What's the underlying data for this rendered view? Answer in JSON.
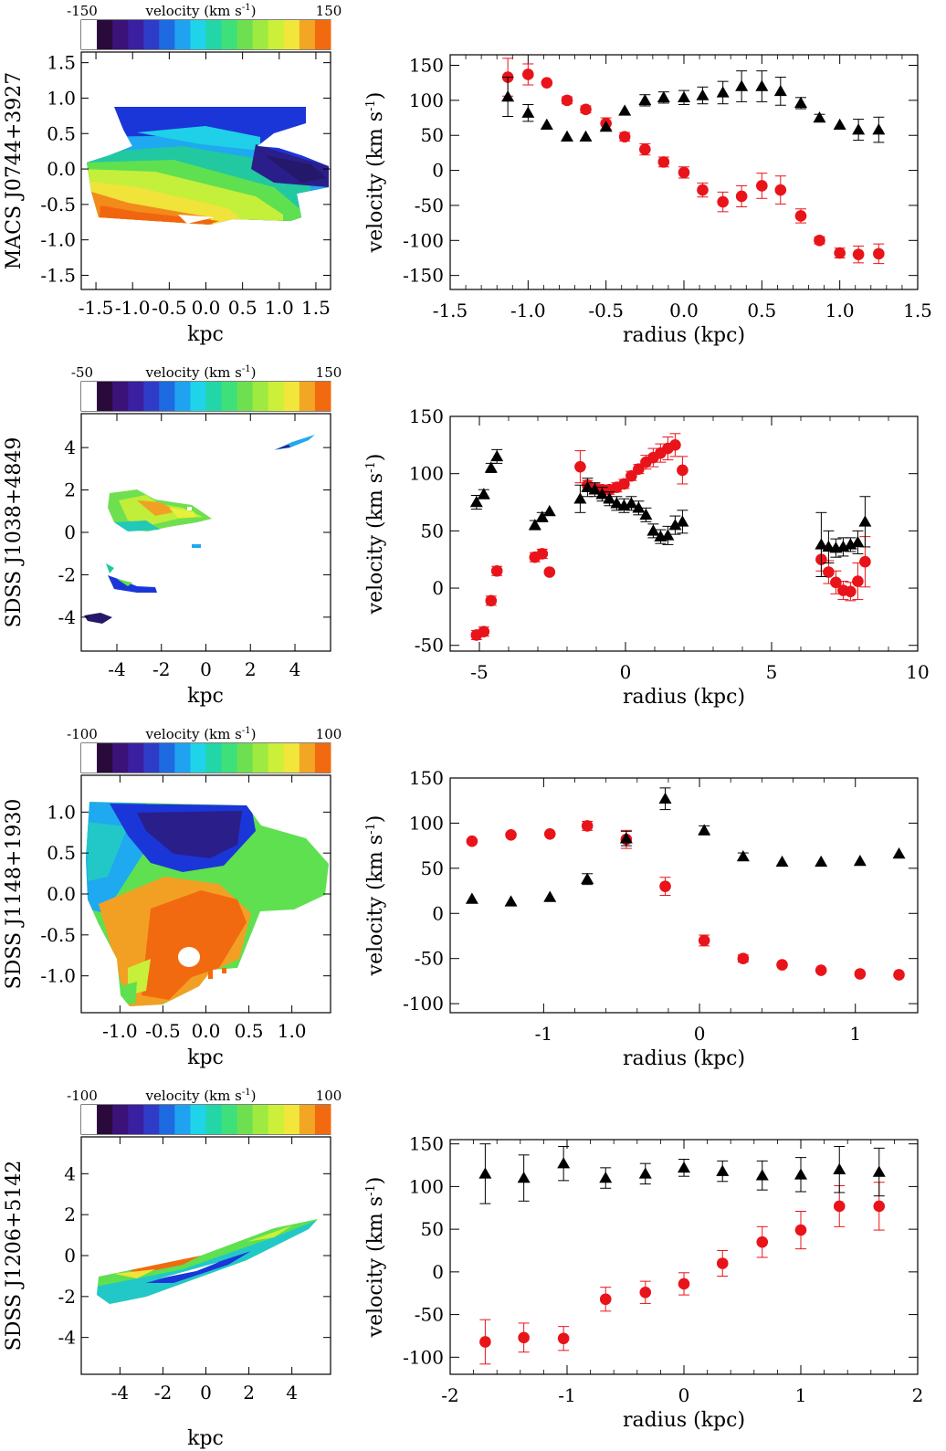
{
  "chart_data": [
    {
      "type": "scatter",
      "object": "MACS J0744+3927",
      "map": {
        "colorbar": {
          "min_label": "-150",
          "max_label": "150",
          "label": "velocity (km s",
          "sup": "-1",
          "close": ")"
        },
        "ylabel": "MACS J0744+3927",
        "xlabel": "kpc",
        "xlim": [
          -1.7,
          1.7
        ],
        "ylim": [
          -1.7,
          1.65
        ],
        "xticks": [
          -1.5,
          -1.0,
          -0.5,
          0.0,
          0.5,
          1.0,
          1.5
        ],
        "xtick_labels": [
          "-1.5",
          "-1.0",
          "-0.5",
          "0.0",
          "0.5",
          "1.0",
          "1.5"
        ],
        "yticks": [
          -1.5,
          -1.0,
          -0.5,
          0.0,
          0.5,
          1.0,
          1.5
        ],
        "ytick_labels": [
          "-1.5",
          "-1.0",
          "-0.5",
          "0.0",
          "0.5",
          "1.0",
          "1.5"
        ]
      },
      "plot": {
        "xlabel": "radius (kpc)",
        "ylabel": "velocity (km s",
        "ylabel_sup": "-1",
        "ylabel_close": ")",
        "xlim": [
          -1.5,
          1.5
        ],
        "ylim": [
          -170,
          165
        ],
        "xticks": [
          -1.5,
          -1.0,
          -0.5,
          0.0,
          0.5,
          1.0,
          1.5
        ],
        "xtick_labels": [
          "-1.5",
          "-1.0",
          "-0.5",
          "0.0",
          "0.5",
          "1.0",
          "1.5"
        ],
        "yticks": [
          -150,
          -100,
          -50,
          0,
          50,
          100,
          150
        ],
        "ytick_labels": [
          "-150",
          "-100",
          "-50",
          "0",
          "50",
          "100",
          "150"
        ],
        "series": [
          {
            "name": "red circles",
            "marker": "circle",
            "color": "#e8141a",
            "x": [
              -1.13,
              -1.0,
              -0.88,
              -0.75,
              -0.63,
              -0.5,
              -0.38,
              -0.25,
              -0.13,
              0.0,
              0.12,
              0.25,
              0.37,
              0.5,
              0.62,
              0.75,
              0.87,
              1.0,
              1.12,
              1.25
            ],
            "y": [
              133,
              137,
              125,
              100,
              87,
              67,
              48,
              30,
              12,
              -3,
              -28,
              -45,
              -37,
              -22,
              -28,
              -65,
              -100,
              -118,
              -120,
              -119
            ],
            "err": [
              27,
              15,
              0,
              5,
              5,
              8,
              6,
              8,
              7,
              8,
              10,
              14,
              15,
              18,
              20,
              10,
              5,
              7,
              12,
              14
            ]
          },
          {
            "name": "black triangles",
            "marker": "triangle",
            "color": "#000000",
            "x": [
              -1.13,
              -1.0,
              -0.88,
              -0.75,
              -0.63,
              -0.5,
              -0.38,
              -0.25,
              -0.13,
              0.0,
              0.12,
              0.25,
              0.37,
              0.5,
              0.62,
              0.75,
              0.87,
              1.0,
              1.12,
              1.25
            ],
            "y": [
              105,
              82,
              65,
              48,
              48,
              62,
              85,
              100,
              104,
              104,
              107,
              111,
              120,
              120,
              113,
              96,
              75,
              65,
              58,
              58
            ],
            "err": [
              28,
              12,
              0,
              0,
              0,
              0,
              0,
              8,
              8,
              10,
              12,
              16,
              22,
              22,
              20,
              8,
              5,
              0,
              15,
              18
            ]
          }
        ]
      }
    },
    {
      "type": "scatter",
      "object": "SDSS J1038+4849",
      "map": {
        "colorbar": {
          "min_label": "-50",
          "max_label": "150",
          "label": "velocity (km s",
          "sup": "-1",
          "close": ")"
        },
        "ylabel": "SDSS J1038+4849",
        "xlabel": "kpc",
        "xlim": [
          -5.6,
          5.6
        ],
        "ylim": [
          -5.6,
          5.6
        ],
        "xticks": [
          -4,
          -2,
          0,
          2,
          4
        ],
        "xtick_labels": [
          "-4",
          "-2",
          "0",
          "2",
          "4"
        ],
        "yticks": [
          -4,
          -2,
          0,
          2,
          4
        ],
        "ytick_labels": [
          "-4",
          "-2",
          "0",
          "2",
          "4"
        ]
      },
      "plot": {
        "xlabel": "radius (kpc)",
        "ylabel": "velocity (km s",
        "ylabel_sup": "-1",
        "ylabel_close": ")",
        "xlim": [
          -6,
          10
        ],
        "ylim": [
          -55,
          150
        ],
        "xticks": [
          -5,
          0,
          5,
          10
        ],
        "xtick_labels": [
          "-5",
          "0",
          "5",
          "10"
        ],
        "yticks": [
          -50,
          0,
          50,
          100,
          150
        ],
        "ytick_labels": [
          "-50",
          "0",
          "50",
          "100",
          "150"
        ],
        "series": [
          {
            "name": "red circles",
            "marker": "circle",
            "color": "#e8141a",
            "x": [
              -5.1,
              -4.85,
              -4.6,
              -4.4,
              -3.1,
              -2.85,
              -2.6,
              -1.55,
              -1.3,
              -1.05,
              -0.8,
              -0.55,
              -0.3,
              -0.05,
              0.2,
              0.45,
              0.7,
              0.95,
              1.2,
              1.45,
              1.7,
              1.95,
              6.7,
              6.95,
              7.2,
              7.45,
              7.7,
              7.95,
              8.2
            ],
            "y": [
              -41,
              -38,
              -11,
              15,
              27,
              30,
              14,
              106,
              90,
              87,
              86,
              86,
              88,
              91,
              98,
              104,
              110,
              114,
              118,
              122,
              125,
              103,
              25,
              14,
              5,
              -2,
              -3,
              6,
              23
            ],
            "err": [
              4,
              4,
              4,
              4,
              4,
              4,
              0,
              14,
              4,
              4,
              4,
              4,
              4,
              4,
              4,
              4,
              6,
              8,
              8,
              10,
              10,
              12,
              10,
              10,
              10,
              8,
              8,
              16,
              22
            ]
          },
          {
            "name": "black triangles",
            "marker": "triangle",
            "color": "#000000",
            "x": [
              -5.1,
              -4.85,
              -4.6,
              -4.4,
              -3.1,
              -2.85,
              -2.6,
              -1.55,
              -1.3,
              -1.05,
              -0.8,
              -0.55,
              -0.3,
              -0.05,
              0.2,
              0.45,
              0.7,
              0.95,
              1.2,
              1.45,
              1.7,
              1.95,
              6.7,
              6.95,
              7.2,
              7.45,
              7.7,
              7.95,
              8.2
            ],
            "y": [
              75,
              82,
              105,
              115,
              55,
              62,
              67,
              78,
              88,
              86,
              82,
              78,
              74,
              72,
              74,
              70,
              64,
              50,
              45,
              46,
              55,
              58,
              38,
              36,
              35,
              36,
              38,
              40,
              58
            ],
            "err": [
              6,
              4,
              4,
              6,
              4,
              4,
              0,
              12,
              8,
              6,
              6,
              6,
              6,
              6,
              6,
              6,
              6,
              6,
              6,
              8,
              8,
              10,
              28,
              14,
              8,
              8,
              6,
              10,
              22
            ]
          }
        ]
      }
    },
    {
      "type": "scatter",
      "object": "SDSS J1148+1930",
      "map": {
        "colorbar": {
          "min_label": "-100",
          "max_label": "100",
          "label": "velocity (km s",
          "sup": "-1",
          "close": ")"
        },
        "ylabel": "SDSS J1148+1930",
        "xlabel": "kpc",
        "xlim": [
          -1.45,
          1.45
        ],
        "ylim": [
          -1.45,
          1.45
        ],
        "xticks": [
          -1.0,
          -0.5,
          0.0,
          0.5,
          1.0
        ],
        "xtick_labels": [
          "-1.0",
          "-0.5",
          "0.0",
          "0.5",
          "1.0"
        ],
        "yticks": [
          -1.0,
          -0.5,
          0.0,
          0.5,
          1.0
        ],
        "ytick_labels": [
          "-1.0",
          "-0.5",
          "0.0",
          "0.5",
          "1.0"
        ]
      },
      "plot": {
        "xlabel": "radius (kpc)",
        "ylabel": "velocity (km s",
        "ylabel_sup": "-1",
        "ylabel_close": ")",
        "xlim": [
          -1.6,
          1.4
        ],
        "ylim": [
          -110,
          150
        ],
        "xticks": [
          -1,
          0,
          1
        ],
        "xtick_labels": [
          "-1",
          "0",
          "1"
        ],
        "yticks": [
          -100,
          -50,
          0,
          50,
          100,
          150
        ],
        "ytick_labels": [
          "-100",
          "-50",
          "0",
          "50",
          "100",
          "150"
        ],
        "series": [
          {
            "name": "red circles",
            "marker": "circle",
            "color": "#e8141a",
            "x": [
              -1.46,
              -1.21,
              -0.96,
              -0.72,
              -0.47,
              -0.22,
              0.03,
              0.28,
              0.53,
              0.78,
              1.03,
              1.28
            ],
            "y": [
              80,
              87,
              88,
              97,
              82,
              30,
              -30,
              -50,
              -57,
              -63,
              -67,
              -68
            ],
            "err": [
              0,
              0,
              0,
              5,
              10,
              10,
              6,
              4,
              0,
              0,
              0,
              0
            ]
          },
          {
            "name": "black triangles",
            "marker": "triangle",
            "color": "#000000",
            "x": [
              -1.46,
              -1.21,
              -0.96,
              -0.72,
              -0.47,
              -0.22,
              0.03,
              0.28,
              0.53,
              0.78,
              1.03,
              1.28
            ],
            "y": [
              16,
              13,
              18,
              38,
              83,
              127,
              92,
              63,
              57,
              57,
              58,
              66
            ],
            "err": [
              0,
              0,
              0,
              6,
              8,
              12,
              5,
              4,
              0,
              0,
              0,
              0
            ]
          }
        ]
      }
    },
    {
      "type": "scatter",
      "object": "SDSS J1206+5142",
      "map": {
        "colorbar": {
          "min_label": "-100",
          "max_label": "100",
          "label": "velocity (km s",
          "sup": "-1",
          "close": ")"
        },
        "ylabel": "SDSS J1206+5142",
        "xlabel": "kpc",
        "xlim": [
          -5.8,
          5.8
        ],
        "ylim": [
          -5.8,
          5.8
        ],
        "xticks": [
          -4,
          -2,
          0,
          2,
          4
        ],
        "xtick_labels": [
          "-4",
          "-2",
          "0",
          "2",
          "4"
        ],
        "yticks": [
          -4,
          -2,
          0,
          2,
          4
        ],
        "ytick_labels": [
          "-4",
          "-2",
          "0",
          "2",
          "4"
        ]
      },
      "plot": {
        "xlabel": "radius (kpc)",
        "ylabel": "velocity (km s",
        "ylabel_sup": "-1",
        "ylabel_close": ")",
        "xlim": [
          -2,
          2
        ],
        "ylim": [
          -120,
          155
        ],
        "xticks": [
          -2,
          -1,
          0,
          1,
          2
        ],
        "xtick_labels": [
          "-2",
          "-1",
          "0",
          "1",
          "2"
        ],
        "yticks": [
          -100,
          -50,
          0,
          50,
          100,
          150
        ],
        "ytick_labels": [
          "-100",
          "-50",
          "0",
          "50",
          "100",
          "150"
        ],
        "series": [
          {
            "name": "red circles",
            "marker": "circle",
            "color": "#e8141a",
            "x": [
              -1.7,
              -1.37,
              -1.03,
              -0.67,
              -0.33,
              0.0,
              0.33,
              0.67,
              1.0,
              1.33,
              1.67
            ],
            "y": [
              -82,
              -77,
              -78,
              -32,
              -24,
              -14,
              10,
              35,
              49,
              77,
              77
            ],
            "err": [
              26,
              17,
              14,
              14,
              13,
              13,
              15,
              18,
              22,
              24,
              28
            ]
          },
          {
            "name": "black triangles",
            "marker": "triangle",
            "color": "#000000",
            "x": [
              -1.7,
              -1.37,
              -1.03,
              -0.67,
              -0.33,
              0.0,
              0.33,
              0.67,
              1.0,
              1.33,
              1.67
            ],
            "y": [
              115,
              110,
              127,
              110,
              115,
              122,
              118,
              113,
              114,
              120,
              117
            ],
            "err": [
              35,
              27,
              20,
              12,
              12,
              10,
              12,
              17,
              20,
              27,
              28
            ]
          }
        ]
      }
    }
  ]
}
